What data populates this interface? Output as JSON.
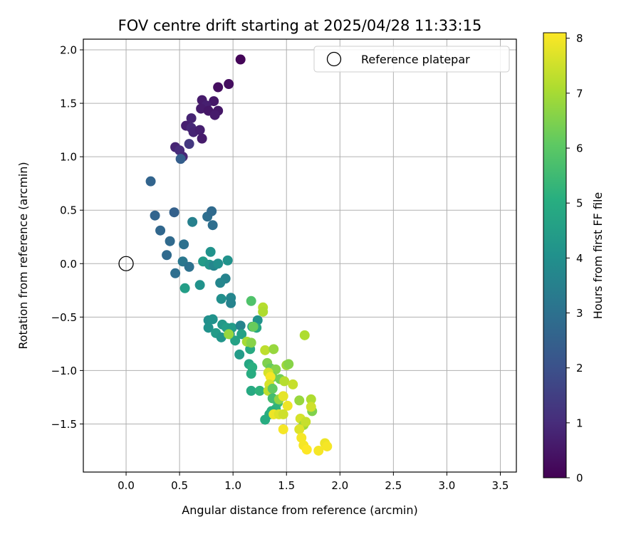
{
  "chart_data": {
    "type": "scatter",
    "title": "FOV centre drift starting at 2025/04/28 11:33:15",
    "xlabel": "Angular distance from reference (arcmin)",
    "ylabel": "Rotation from reference (arcmin)",
    "xlim": [
      -0.4,
      3.65
    ],
    "ylim": [
      -1.95,
      2.1
    ],
    "xticks": [
      0.0,
      0.5,
      1.0,
      1.5,
      2.0,
      2.5,
      3.0,
      3.5
    ],
    "xtick_labels": [
      "0.0",
      "0.5",
      "1.0",
      "1.5",
      "2.0",
      "2.5",
      "3.0",
      "3.5"
    ],
    "yticks": [
      2.0,
      1.5,
      1.0,
      0.5,
      0.0,
      -0.5,
      -1.0,
      -1.5
    ],
    "ytick_labels": [
      "2.0",
      "1.5",
      "1.0",
      "0.5",
      "0.0",
      "−0.5",
      "−1.0",
      "−1.5"
    ],
    "grid": true,
    "legend": {
      "label": "Reference platepar",
      "placement": "upper-right"
    },
    "reference_point": {
      "x": 0.0,
      "y": 0.0
    },
    "colorbar": {
      "label": "Hours from first FF file",
      "colormap": "viridis",
      "range": [
        0,
        8.1
      ],
      "ticks": [
        0,
        1,
        2,
        3,
        4,
        5,
        6,
        7,
        8
      ],
      "tick_labels": [
        "0",
        "1",
        "2",
        "3",
        "4",
        "5",
        "6",
        "7",
        "8"
      ]
    },
    "points": [
      {
        "x": 1.07,
        "y": 1.91,
        "c": 0.1
      },
      {
        "x": 0.96,
        "y": 1.68,
        "c": 0.3
      },
      {
        "x": 0.86,
        "y": 1.65,
        "c": 0.3
      },
      {
        "x": 0.71,
        "y": 1.53,
        "c": 0.6
      },
      {
        "x": 0.82,
        "y": 1.52,
        "c": 0.5
      },
      {
        "x": 0.75,
        "y": 1.48,
        "c": 0.7
      },
      {
        "x": 0.7,
        "y": 1.45,
        "c": 0.6
      },
      {
        "x": 0.77,
        "y": 1.43,
        "c": 0.5
      },
      {
        "x": 0.86,
        "y": 1.43,
        "c": 0.5
      },
      {
        "x": 0.83,
        "y": 1.39,
        "c": 0.6
      },
      {
        "x": 0.61,
        "y": 1.36,
        "c": 0.8
      },
      {
        "x": 0.56,
        "y": 1.29,
        "c": 0.7
      },
      {
        "x": 0.61,
        "y": 1.27,
        "c": 0.9
      },
      {
        "x": 0.63,
        "y": 1.23,
        "c": 0.8
      },
      {
        "x": 0.69,
        "y": 1.25,
        "c": 0.7
      },
      {
        "x": 0.71,
        "y": 1.17,
        "c": 0.6
      },
      {
        "x": 0.59,
        "y": 1.12,
        "c": 1.3
      },
      {
        "x": 0.46,
        "y": 1.09,
        "c": 0.8
      },
      {
        "x": 0.5,
        "y": 1.06,
        "c": 1.0
      },
      {
        "x": 0.53,
        "y": 1.0,
        "c": 0.9
      },
      {
        "x": 0.51,
        "y": 0.98,
        "c": 2.4
      },
      {
        "x": 0.23,
        "y": 0.77,
        "c": 2.6
      },
      {
        "x": 0.27,
        "y": 0.45,
        "c": 2.6
      },
      {
        "x": 0.45,
        "y": 0.48,
        "c": 2.5
      },
      {
        "x": 0.32,
        "y": 0.31,
        "c": 2.7
      },
      {
        "x": 0.41,
        "y": 0.21,
        "c": 2.8
      },
      {
        "x": 0.54,
        "y": 0.18,
        "c": 3.0
      },
      {
        "x": 0.38,
        "y": 0.08,
        "c": 2.8
      },
      {
        "x": 0.46,
        "y": -0.09,
        "c": 2.9
      },
      {
        "x": 0.53,
        "y": 0.02,
        "c": 3.2
      },
      {
        "x": 0.59,
        "y": -0.03,
        "c": 3.0
      },
      {
        "x": 0.62,
        "y": 0.39,
        "c": 3.5
      },
      {
        "x": 0.76,
        "y": 0.44,
        "c": 2.9
      },
      {
        "x": 0.8,
        "y": 0.49,
        "c": 2.8
      },
      {
        "x": 0.81,
        "y": 0.36,
        "c": 2.9
      },
      {
        "x": 0.72,
        "y": 0.02,
        "c": 4.4
      },
      {
        "x": 0.78,
        "y": -0.01,
        "c": 4.2
      },
      {
        "x": 0.82,
        "y": -0.02,
        "c": 3.7
      },
      {
        "x": 0.79,
        "y": 0.11,
        "c": 4.1
      },
      {
        "x": 0.86,
        "y": 0.0,
        "c": 4.0
      },
      {
        "x": 0.95,
        "y": 0.03,
        "c": 4.1
      },
      {
        "x": 0.93,
        "y": -0.14,
        "c": 3.6
      },
      {
        "x": 0.88,
        "y": -0.18,
        "c": 3.7
      },
      {
        "x": 0.69,
        "y": -0.2,
        "c": 4.1
      },
      {
        "x": 0.55,
        "y": -0.23,
        "c": 4.5
      },
      {
        "x": 0.89,
        "y": -0.33,
        "c": 4.0
      },
      {
        "x": 0.98,
        "y": -0.32,
        "c": 3.7
      },
      {
        "x": 0.98,
        "y": -0.37,
        "c": 3.6
      },
      {
        "x": 0.77,
        "y": -0.53,
        "c": 4.0
      },
      {
        "x": 0.81,
        "y": -0.52,
        "c": 4.1
      },
      {
        "x": 0.77,
        "y": -0.6,
        "c": 4.1
      },
      {
        "x": 0.84,
        "y": -0.65,
        "c": 4.4
      },
      {
        "x": 0.89,
        "y": -0.69,
        "c": 4.2
      },
      {
        "x": 0.9,
        "y": -0.57,
        "c": 4.3
      },
      {
        "x": 0.94,
        "y": -0.6,
        "c": 4.5
      },
      {
        "x": 0.99,
        "y": -0.6,
        "c": 4.4
      },
      {
        "x": 0.97,
        "y": -0.66,
        "c": 4.3
      },
      {
        "x": 1.07,
        "y": -0.58,
        "c": 3.6
      },
      {
        "x": 1.08,
        "y": -0.66,
        "c": 4.6
      },
      {
        "x": 1.02,
        "y": -0.72,
        "c": 4.6
      },
      {
        "x": 1.06,
        "y": -0.85,
        "c": 4.4
      },
      {
        "x": 1.15,
        "y": -0.94,
        "c": 4.8
      },
      {
        "x": 1.18,
        "y": -0.97,
        "c": 5.1
      },
      {
        "x": 1.17,
        "y": -1.03,
        "c": 5.0
      },
      {
        "x": 1.17,
        "y": -1.19,
        "c": 4.9
      },
      {
        "x": 1.25,
        "y": -1.19,
        "c": 5.2
      },
      {
        "x": 1.23,
        "y": -0.53,
        "c": 4.1
      },
      {
        "x": 1.16,
        "y": -0.8,
        "c": 4.9
      },
      {
        "x": 1.18,
        "y": -0.59,
        "c": 4.7
      },
      {
        "x": 1.22,
        "y": -0.6,
        "c": 4.8
      },
      {
        "x": 1.17,
        "y": -0.35,
        "c": 5.8
      },
      {
        "x": 0.96,
        "y": -0.66,
        "c": 6.8
      },
      {
        "x": 1.13,
        "y": -0.73,
        "c": 7.0
      },
      {
        "x": 1.17,
        "y": -0.74,
        "c": 6.6
      },
      {
        "x": 1.28,
        "y": -0.41,
        "c": 7.2
      },
      {
        "x": 1.28,
        "y": -0.45,
        "c": 7.1
      },
      {
        "x": 1.19,
        "y": -0.59,
        "c": 6.2
      },
      {
        "x": 1.3,
        "y": -0.81,
        "c": 7.3
      },
      {
        "x": 1.38,
        "y": -0.8,
        "c": 6.8
      },
      {
        "x": 1.32,
        "y": -0.93,
        "c": 6.5
      },
      {
        "x": 1.35,
        "y": -0.98,
        "c": 6.2
      },
      {
        "x": 1.4,
        "y": -0.99,
        "c": 6.6
      },
      {
        "x": 1.37,
        "y": -1.06,
        "c": 6.4
      },
      {
        "x": 1.44,
        "y": -1.08,
        "c": 6.3
      },
      {
        "x": 1.48,
        "y": -1.1,
        "c": 7.2
      },
      {
        "x": 1.5,
        "y": -0.95,
        "c": 6.9
      },
      {
        "x": 1.52,
        "y": -0.94,
        "c": 6.6
      },
      {
        "x": 1.56,
        "y": -1.13,
        "c": 7.4
      },
      {
        "x": 1.33,
        "y": -1.02,
        "c": 7.6
      },
      {
        "x": 1.35,
        "y": -1.06,
        "c": 8.0
      },
      {
        "x": 1.34,
        "y": -1.13,
        "c": 7.6
      },
      {
        "x": 1.33,
        "y": -1.19,
        "c": 7.3
      },
      {
        "x": 1.37,
        "y": -1.17,
        "c": 6.1
      },
      {
        "x": 1.37,
        "y": -1.26,
        "c": 5.6
      },
      {
        "x": 1.42,
        "y": -1.3,
        "c": 5.5
      },
      {
        "x": 1.4,
        "y": -1.36,
        "c": 5.2
      },
      {
        "x": 1.34,
        "y": -1.41,
        "c": 5.0
      },
      {
        "x": 1.3,
        "y": -1.46,
        "c": 5.0
      },
      {
        "x": 1.36,
        "y": -1.38,
        "c": 5.1
      },
      {
        "x": 1.43,
        "y": -1.27,
        "c": 6.7
      },
      {
        "x": 1.47,
        "y": -1.24,
        "c": 7.8
      },
      {
        "x": 1.51,
        "y": -1.33,
        "c": 7.9
      },
      {
        "x": 1.38,
        "y": -1.41,
        "c": 7.9
      },
      {
        "x": 1.43,
        "y": -1.41,
        "c": 7.7
      },
      {
        "x": 1.47,
        "y": -1.41,
        "c": 7.5
      },
      {
        "x": 1.47,
        "y": -1.55,
        "c": 8.0
      },
      {
        "x": 1.62,
        "y": -1.28,
        "c": 6.8
      },
      {
        "x": 1.63,
        "y": -1.45,
        "c": 7.6
      },
      {
        "x": 1.66,
        "y": -1.51,
        "c": 6.9
      },
      {
        "x": 1.68,
        "y": -1.48,
        "c": 7.4
      },
      {
        "x": 1.62,
        "y": -1.55,
        "c": 7.7
      },
      {
        "x": 1.64,
        "y": -1.63,
        "c": 8.0
      },
      {
        "x": 1.66,
        "y": -1.7,
        "c": 8.0
      },
      {
        "x": 1.69,
        "y": -1.74,
        "c": 8.1
      },
      {
        "x": 1.67,
        "y": -0.67,
        "c": 7.1
      },
      {
        "x": 1.73,
        "y": -1.27,
        "c": 7.1
      },
      {
        "x": 1.74,
        "y": -1.38,
        "c": 6.5
      },
      {
        "x": 1.73,
        "y": -1.34,
        "c": 7.5
      },
      {
        "x": 1.8,
        "y": -1.75,
        "c": 8.0
      },
      {
        "x": 1.86,
        "y": -1.68,
        "c": 7.9
      },
      {
        "x": 1.88,
        "y": -1.71,
        "c": 8.0
      }
    ]
  }
}
